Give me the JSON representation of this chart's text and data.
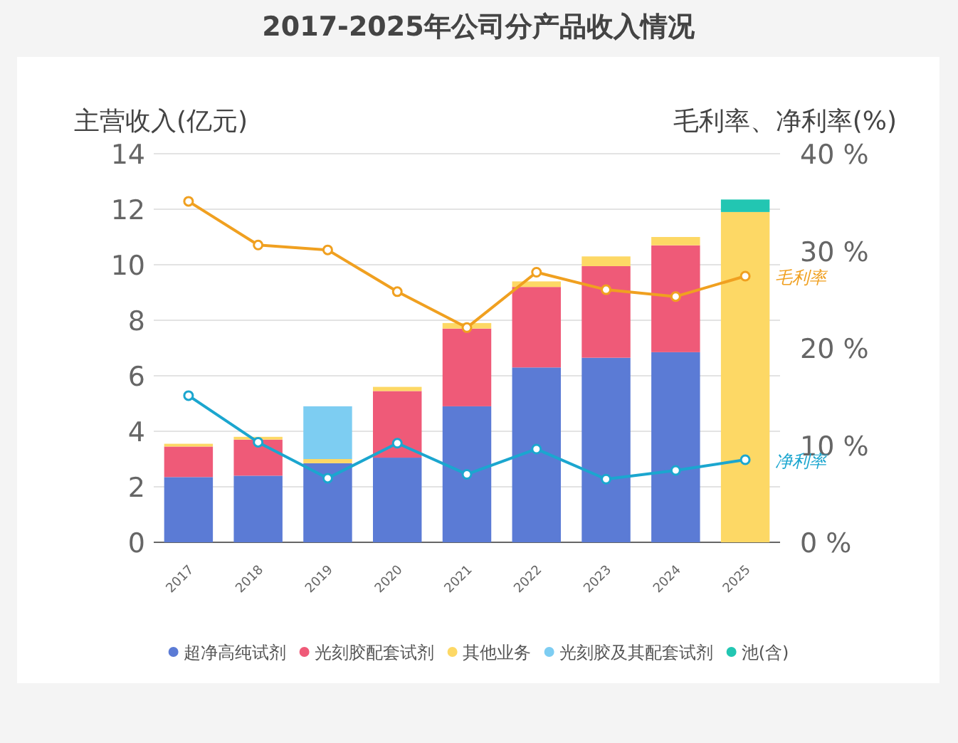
{
  "chart_data": {
    "type": "bar",
    "stacked": true,
    "title": "2017-2025年公司分产品收入情况",
    "categories": [
      "2017",
      "2018",
      "2019",
      "2020",
      "2021",
      "2022",
      "2023",
      "2024",
      "2025"
    ],
    "series": [
      {
        "name": "超净高纯试剂",
        "color": "#5b7bd5",
        "values": [
          2.35,
          2.4,
          2.85,
          3.05,
          4.9,
          6.3,
          6.65,
          6.85,
          null
        ]
      },
      {
        "name": "光刻胶配套试剂",
        "color": "#ef5a78",
        "values": [
          1.1,
          1.3,
          null,
          2.4,
          2.8,
          2.9,
          3.3,
          3.85,
          null
        ]
      },
      {
        "name": "其他业务",
        "color": "#fdd865",
        "values": [
          0.1,
          0.1,
          0.15,
          0.15,
          0.2,
          0.2,
          0.35,
          0.3,
          11.9
        ]
      },
      {
        "name": "光刻胶及其配套试剂",
        "color": "#7dcdf2",
        "values": [
          null,
          null,
          1.9,
          null,
          null,
          null,
          null,
          null,
          null
        ]
      },
      {
        "name": "池(含)",
        "color": "#22c6b2",
        "values": [
          null,
          null,
          null,
          null,
          null,
          null,
          null,
          null,
          0.45
        ]
      },
      {
        "name": "毛利率",
        "type": "line",
        "axis": "y2",
        "color": "#f0a020",
        "values": [
          35.1,
          30.6,
          30.1,
          25.8,
          22.1,
          27.8,
          26.0,
          25.3,
          27.4
        ]
      },
      {
        "name": "净利率",
        "type": "line",
        "axis": "y2",
        "color": "#1ba6cf",
        "values": [
          15.1,
          10.3,
          6.6,
          10.2,
          7.0,
          9.6,
          6.5,
          7.4,
          8.5
        ]
      }
    ],
    "ylabel": "主营收入(亿元)",
    "y2label": "毛利率、净利率(%)",
    "ylim": [
      0,
      14
    ],
    "yticks": [
      0,
      2,
      4,
      6,
      8,
      10,
      12,
      14
    ],
    "y2lim": [
      0,
      40
    ],
    "y2ticks": [
      {
        "value": 0,
        "label": "0 %"
      },
      {
        "value": 10,
        "label": "10 %"
      },
      {
        "value": 20,
        "label": "20 %"
      },
      {
        "value": 30,
        "label": "30 %"
      },
      {
        "value": 40,
        "label": "40 %"
      }
    ],
    "grid": "y",
    "legend": "bottom",
    "marker": "circle",
    "line_style": "solid"
  }
}
